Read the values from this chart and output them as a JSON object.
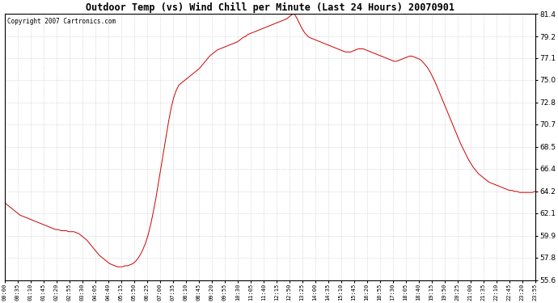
{
  "title": "Outdoor Temp (vs) Wind Chill per Minute (Last 24 Hours) 20070901",
  "copyright": "Copyright 2007 Cartronics.com",
  "line_color": "#cc0000",
  "background_color": "#ffffff",
  "plot_background": "#ffffff",
  "grid_color": "#b0b0b0",
  "yticks": [
    55.6,
    57.8,
    59.9,
    62.1,
    64.2,
    66.4,
    68.5,
    70.7,
    72.8,
    75.0,
    77.1,
    79.2,
    81.4
  ],
  "ylim": [
    55.6,
    81.4
  ],
  "xtick_labels": [
    "00:00",
    "00:35",
    "01:10",
    "01:45",
    "02:20",
    "02:55",
    "03:30",
    "04:05",
    "04:40",
    "05:15",
    "05:50",
    "06:25",
    "07:00",
    "07:35",
    "08:10",
    "08:45",
    "09:20",
    "09:55",
    "10:30",
    "11:05",
    "11:40",
    "12:15",
    "12:50",
    "13:25",
    "14:00",
    "14:35",
    "15:10",
    "15:45",
    "16:20",
    "16:55",
    "17:30",
    "18:05",
    "18:40",
    "19:15",
    "19:50",
    "20:25",
    "21:00",
    "21:35",
    "22:10",
    "22:45",
    "23:20",
    "23:55"
  ],
  "curve": [
    63.1,
    62.9,
    62.7,
    62.5,
    62.3,
    62.1,
    61.9,
    61.8,
    61.7,
    61.6,
    61.5,
    61.4,
    61.3,
    61.2,
    61.1,
    61.0,
    60.9,
    60.8,
    60.7,
    60.6,
    60.5,
    60.5,
    60.4,
    60.4,
    60.4,
    60.3,
    60.3,
    60.3,
    60.2,
    60.1,
    59.9,
    59.7,
    59.5,
    59.2,
    58.9,
    58.6,
    58.3,
    58.0,
    57.8,
    57.6,
    57.4,
    57.2,
    57.1,
    57.0,
    56.9,
    56.9,
    56.9,
    57.0,
    57.0,
    57.1,
    57.2,
    57.4,
    57.7,
    58.1,
    58.6,
    59.2,
    60.0,
    61.0,
    62.2,
    63.5,
    65.0,
    66.5,
    68.0,
    69.5,
    71.0,
    72.3,
    73.3,
    74.0,
    74.5,
    74.7,
    74.9,
    75.1,
    75.3,
    75.5,
    75.7,
    75.9,
    76.1,
    76.4,
    76.7,
    77.0,
    77.3,
    77.5,
    77.7,
    77.9,
    78.0,
    78.1,
    78.2,
    78.3,
    78.4,
    78.5,
    78.6,
    78.7,
    78.9,
    79.1,
    79.2,
    79.4,
    79.5,
    79.6,
    79.7,
    79.8,
    79.9,
    80.0,
    80.1,
    80.2,
    80.3,
    80.4,
    80.5,
    80.6,
    80.7,
    80.8,
    80.9,
    81.1,
    81.3,
    81.4,
    81.0,
    80.5,
    80.0,
    79.6,
    79.3,
    79.1,
    79.0,
    78.9,
    78.8,
    78.7,
    78.6,
    78.5,
    78.4,
    78.3,
    78.2,
    78.1,
    78.0,
    77.9,
    77.8,
    77.7,
    77.7,
    77.7,
    77.8,
    77.9,
    78.0,
    78.0,
    78.0,
    77.9,
    77.8,
    77.7,
    77.6,
    77.5,
    77.4,
    77.3,
    77.2,
    77.1,
    77.0,
    76.9,
    76.8,
    76.8,
    76.9,
    77.0,
    77.1,
    77.2,
    77.3,
    77.3,
    77.2,
    77.1,
    77.0,
    76.8,
    76.5,
    76.2,
    75.8,
    75.3,
    74.8,
    74.2,
    73.6,
    73.0,
    72.4,
    71.8,
    71.2,
    70.6,
    70.0,
    69.4,
    68.8,
    68.3,
    67.8,
    67.3,
    66.9,
    66.5,
    66.2,
    65.9,
    65.7,
    65.5,
    65.3,
    65.1,
    65.0,
    64.9,
    64.8,
    64.7,
    64.6,
    64.5,
    64.4,
    64.3,
    64.3,
    64.2,
    64.2,
    64.1,
    64.1,
    64.1,
    64.1,
    64.1,
    64.1,
    64.2
  ]
}
